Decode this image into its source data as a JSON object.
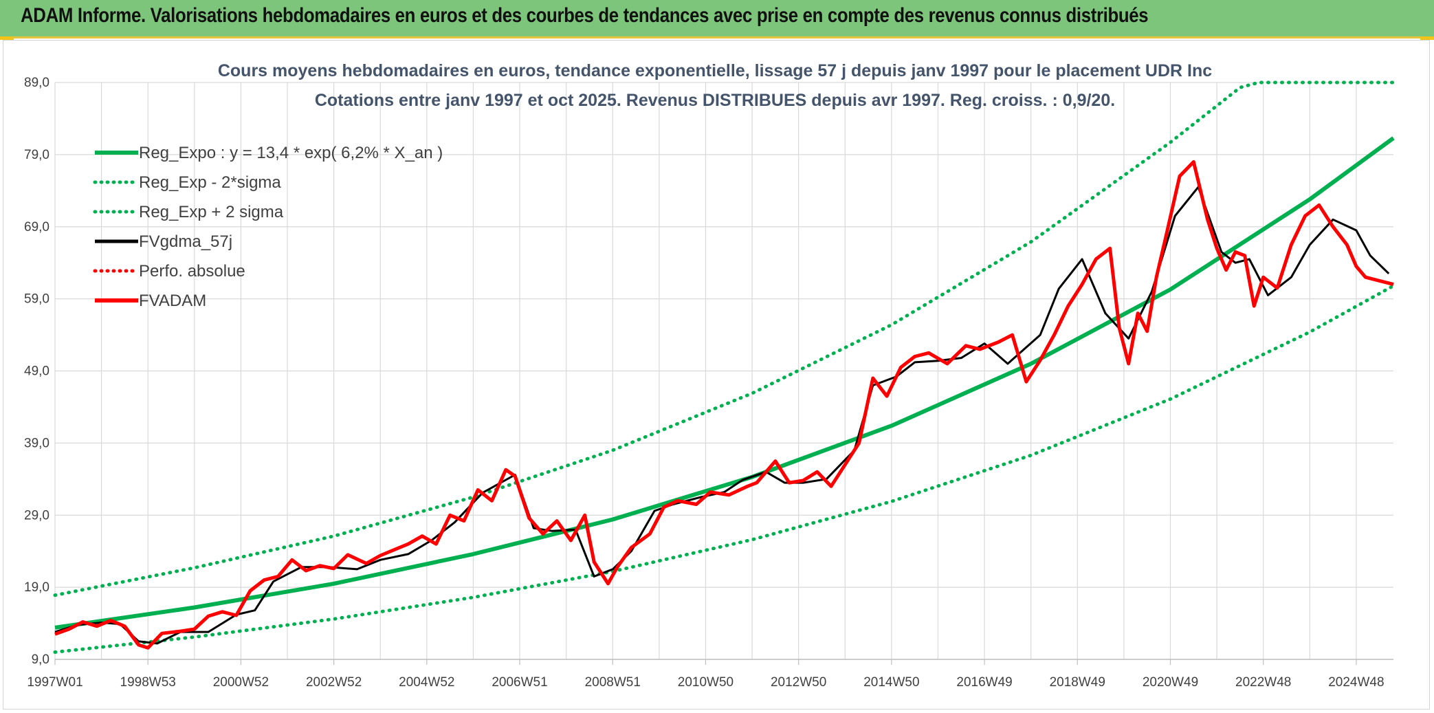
{
  "header": {
    "title": "ADAM Informe. Valorisations hebdomadaires en euros et des courbes de tendances avec prise en compte des revenus connus distribués"
  },
  "colors": {
    "header_bg": "#7cc57a",
    "header_accent": "#f0c419",
    "trend": "#00b050",
    "smoothed": "#000000",
    "price": "#ff0000"
  },
  "chart_data": {
    "type": "line",
    "title_line1": "Cours moyens hebdomadaires en euros, tendance exponentielle, lissage 57 j depuis janv 1997 pour le placement UDR Inc",
    "title_line2": "Cotations entre janv 1997 et oct 2025. Revenus DISTRIBUES depuis avr 1997. Reg. croiss. : 0,9/20.",
    "xlabel": "",
    "ylabel": "",
    "x_range": [
      1997.0,
      2025.8
    ],
    "ylim": [
      9.0,
      89.0
    ],
    "y_ticks": [
      "89,0",
      "79,0",
      "69,0",
      "59,0",
      "49,0",
      "39,0",
      "29,0",
      "19,0",
      "9,0"
    ],
    "y_tick_values": [
      89,
      79,
      69,
      59,
      49,
      39,
      29,
      19,
      9
    ],
    "x_tick_labels": [
      "1997W01",
      "1998W53",
      "2000W52",
      "2002W52",
      "2004W52",
      "2006W51",
      "2008W51",
      "2010W50",
      "2012W50",
      "2014W50",
      "2016W49",
      "2018W49",
      "2020W49",
      "2022W48",
      "2024W48"
    ],
    "x_tick_values": [
      1997.0,
      1999.0,
      2001.0,
      2003.0,
      2005.0,
      2007.0,
      2009.0,
      2011.0,
      2013.0,
      2015.0,
      2017.0,
      2019.0,
      2021.0,
      2023.0,
      2025.0
    ],
    "grid": true,
    "legend_position": "top-left",
    "legend": [
      {
        "label": "Reg_Expo : y = 13,4 * exp( 6,2% *  X_an )",
        "color": "#00b050",
        "style": "solid-thick"
      },
      {
        "label": "Reg_Exp - 2*sigma",
        "color": "#00b050",
        "style": "dotted"
      },
      {
        "label": "Reg_Exp + 2 sigma",
        "color": "#00b050",
        "style": "dotted"
      },
      {
        "label": "FVgdma_57j",
        "color": "#000000",
        "style": "solid"
      },
      {
        "label": "Perfo. absolue",
        "color": "#ff0000",
        "style": "dotted"
      },
      {
        "label": "FVADAM",
        "color": "#ff0000",
        "style": "solid-thick"
      }
    ],
    "series": [
      {
        "name": "Reg_Expo : y = 13,4 * exp( 6,2% *  X_an )",
        "x": [
          1997.0,
          2000.0,
          2003.0,
          2006.0,
          2009.0,
          2012.0,
          2015.0,
          2018.0,
          2021.0,
          2024.0,
          2025.8
        ],
        "values": [
          13.4,
          16.2,
          19.5,
          23.6,
          28.4,
          34.3,
          41.4,
          50.0,
          60.3,
          72.8,
          81.3
        ]
      },
      {
        "name": "Reg_Exp - 2*sigma",
        "x": [
          1997.0,
          2000.0,
          2003.0,
          2006.0,
          2009.0,
          2012.0,
          2015.0,
          2018.0,
          2021.0,
          2024.0,
          2025.8
        ],
        "values": [
          10.0,
          12.1,
          14.6,
          17.6,
          21.2,
          25.6,
          30.9,
          37.3,
          45.1,
          54.4,
          60.8
        ]
      },
      {
        "name": "Reg_Exp + 2 sigma",
        "x": [
          1997.0,
          2000.0,
          2003.0,
          2006.0,
          2009.0,
          2012.0,
          2015.0,
          2018.0,
          2021.0,
          2022.5,
          2022.9,
          2025.8
        ],
        "values": [
          17.9,
          21.7,
          26.1,
          31.5,
          38.0,
          45.9,
          55.4,
          66.9,
          80.7,
          88.3,
          89.0,
          89.0
        ]
      },
      {
        "name": "FVgdma_57j",
        "x": [
          1997.0,
          1997.5,
          1998.0,
          1998.4,
          1998.8,
          1999.2,
          1999.7,
          2000.3,
          2000.9,
          2001.3,
          2001.7,
          2002.3,
          2002.9,
          2003.5,
          2004.0,
          2004.6,
          2005.1,
          2005.6,
          2006.2,
          2006.9,
          2007.3,
          2007.7,
          2008.2,
          2008.6,
          2009.0,
          2009.4,
          2009.9,
          2010.3,
          2010.9,
          2011.4,
          2011.8,
          2012.3,
          2012.7,
          2013.1,
          2013.6,
          2014.2,
          2014.6,
          2015.1,
          2015.5,
          2016.0,
          2016.5,
          2017.0,
          2017.5,
          2018.2,
          2018.6,
          2019.1,
          2019.6,
          2020.1,
          2020.6,
          2021.1,
          2021.6,
          2022.1,
          2022.4,
          2022.7,
          2023.1,
          2023.6,
          2024.0,
          2024.5,
          2025.0,
          2025.3,
          2025.7
        ],
        "values": [
          12.8,
          13.8,
          14.1,
          13.9,
          11.5,
          11.2,
          12.8,
          12.8,
          15.2,
          15.8,
          19.8,
          21.8,
          21.8,
          21.5,
          22.8,
          23.6,
          25.5,
          28.0,
          32.1,
          34.6,
          27.2,
          26.8,
          27.0,
          20.5,
          21.5,
          24.0,
          29.6,
          30.5,
          31.5,
          32.2,
          33.9,
          35.0,
          33.5,
          33.5,
          34.0,
          38.0,
          47.0,
          48.2,
          50.2,
          50.4,
          50.8,
          52.8,
          50.0,
          54.0,
          60.4,
          64.5,
          57.0,
          53.5,
          60.0,
          70.5,
          74.5,
          65.5,
          64.0,
          64.5,
          59.5,
          62.0,
          66.5,
          70.0,
          68.5,
          65.0,
          62.5
        ]
      },
      {
        "name": "FVADAM",
        "x": [
          1997.0,
          1997.3,
          1997.6,
          1997.9,
          1998.2,
          1998.5,
          1998.8,
          1999.0,
          1999.3,
          1999.7,
          2000.0,
          2000.3,
          2000.6,
          2000.9,
          2001.2,
          2001.5,
          2001.8,
          2002.1,
          2002.4,
          2002.7,
          2003.0,
          2003.3,
          2003.7,
          2004.0,
          2004.3,
          2004.6,
          2004.9,
          2005.2,
          2005.5,
          2005.8,
          2006.1,
          2006.4,
          2006.7,
          2006.9,
          2007.2,
          2007.5,
          2007.8,
          2008.1,
          2008.4,
          2008.6,
          2008.9,
          2009.1,
          2009.4,
          2009.8,
          2010.1,
          2010.4,
          2010.8,
          2011.1,
          2011.5,
          2011.9,
          2012.1,
          2012.5,
          2012.8,
          2013.1,
          2013.4,
          2013.7,
          2014.0,
          2014.3,
          2014.6,
          2014.9,
          2015.2,
          2015.5,
          2015.8,
          2016.2,
          2016.6,
          2016.9,
          2017.3,
          2017.6,
          2017.9,
          2018.2,
          2018.5,
          2018.8,
          2019.1,
          2019.4,
          2019.7,
          2019.9,
          2020.1,
          2020.3,
          2020.5,
          2020.7,
          2020.9,
          2021.2,
          2021.5,
          2021.8,
          2022.0,
          2022.2,
          2022.4,
          2022.6,
          2022.8,
          2023.0,
          2023.3,
          2023.6,
          2023.9,
          2024.2,
          2024.5,
          2024.8,
          2025.0,
          2025.2,
          2025.5,
          2025.8
        ],
        "values": [
          12.5,
          13.2,
          14.2,
          13.6,
          14.4,
          13.6,
          11.0,
          10.6,
          12.6,
          12.9,
          13.2,
          15.0,
          15.6,
          15.1,
          18.5,
          20.0,
          20.5,
          22.8,
          21.3,
          22.0,
          21.6,
          23.5,
          22.3,
          23.4,
          24.2,
          25.0,
          26.1,
          25.0,
          29.0,
          28.2,
          32.5,
          31.0,
          35.3,
          34.4,
          28.6,
          26.4,
          28.2,
          25.5,
          29.0,
          22.5,
          19.5,
          21.8,
          24.5,
          26.4,
          30.1,
          31.0,
          30.5,
          32.2,
          31.8,
          33.0,
          33.5,
          36.5,
          33.5,
          33.8,
          35.0,
          33.0,
          36.0,
          39.0,
          48.0,
          45.5,
          49.5,
          51.0,
          51.5,
          50.0,
          52.5,
          52.0,
          53.0,
          54.0,
          47.5,
          50.5,
          54.0,
          58.0,
          61.0,
          64.5,
          66.0,
          55.0,
          50.0,
          57.0,
          54.5,
          62.0,
          67.5,
          76.0,
          78.0,
          70.0,
          66.0,
          63.0,
          65.5,
          65.0,
          58.0,
          62.0,
          60.5,
          66.5,
          70.5,
          72.0,
          69.0,
          66.5,
          63.5,
          62.0,
          61.5,
          61.0
        ]
      }
    ]
  }
}
